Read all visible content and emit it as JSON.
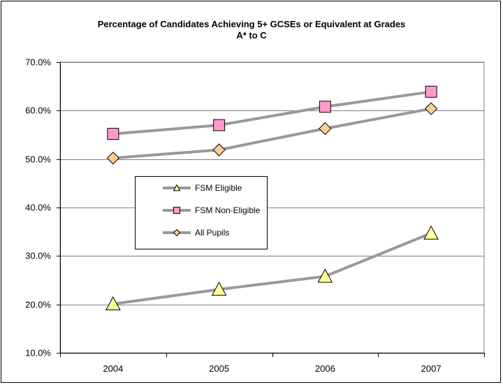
{
  "chart_data": {
    "type": "line",
    "title_line1": "Percentage of Candidates Achieving 5+ GCSEs or Equivalent at Grades",
    "title_line2": "A* to C",
    "categories": [
      "2004",
      "2005",
      "2006",
      "2007"
    ],
    "ylim": [
      0.1,
      0.7
    ],
    "y_ticks": [
      0.1,
      0.2,
      0.3,
      0.4,
      0.5,
      0.6,
      0.7
    ],
    "y_tick_labels": [
      "10.0%",
      "20.0%",
      "30.0%",
      "40.0%",
      "50.0%",
      "60.0%",
      "70.0%"
    ],
    "grid": true,
    "legend_position": "center-left",
    "series": [
      {
        "name": "FSM Eligible",
        "marker": "triangle",
        "fill": "#ffff99",
        "line_color": "#999999",
        "values": [
          0.201,
          0.231,
          0.258,
          0.347
        ]
      },
      {
        "name": "FSM Non-Eligible",
        "marker": "square",
        "fill": "#ff99cc",
        "line_color": "#999999",
        "values": [
          0.552,
          0.57,
          0.608,
          0.639
        ]
      },
      {
        "name": "All Pupils",
        "marker": "diamond",
        "fill": "#ffcc99",
        "line_color": "#999999",
        "values": [
          0.502,
          0.519,
          0.563,
          0.604
        ]
      }
    ]
  }
}
